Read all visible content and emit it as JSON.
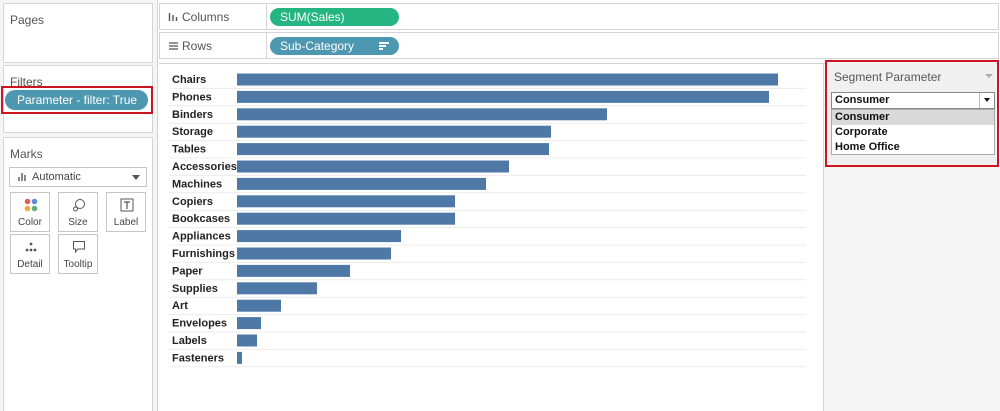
{
  "pages": {
    "title": "Pages"
  },
  "filters": {
    "title": "Filters",
    "pill_label": "Parameter - filter: True"
  },
  "marks": {
    "title": "Marks",
    "mark_type": "Automatic",
    "buttons": [
      {
        "label": "Color",
        "icon": "color-dots-icon"
      },
      {
        "label": "Size",
        "icon": "size-icon"
      },
      {
        "label": "Label",
        "icon": "label-T-icon"
      },
      {
        "label": "Detail",
        "icon": "detail-dots-icon"
      },
      {
        "label": "Tooltip",
        "icon": "tooltip-bubble-icon"
      }
    ]
  },
  "shelves": {
    "columns": {
      "label": "Columns",
      "pill": "SUM(Sales)",
      "icon": "columns-icon"
    },
    "rows": {
      "label": "Rows",
      "pill": "Sub-Category",
      "icon": "rows-icon"
    }
  },
  "colors": {
    "bar": "#4e79a7",
    "measure_pill": "#25b582",
    "dimension_pill": "#4e97b0",
    "highlight_border": "#c8171e"
  },
  "chart_data": {
    "type": "bar",
    "orientation": "horizontal",
    "categories": [
      "Chairs",
      "Phones",
      "Binders",
      "Storage",
      "Tables",
      "Accessories",
      "Machines",
      "Copiers",
      "Bookcases",
      "Appliances",
      "Furnishings",
      "Paper",
      "Supplies",
      "Art",
      "Envelopes",
      "Labels",
      "Fasteners"
    ],
    "values": [
      541,
      532,
      370,
      314,
      312,
      272,
      249,
      218,
      218,
      164,
      154,
      113,
      80,
      44,
      24,
      20,
      5
    ],
    "xlim": [
      0,
      570
    ],
    "grid": false,
    "legend": "none"
  },
  "parameter": {
    "title": "Segment Parameter",
    "selected": "Consumer",
    "options": [
      "Consumer",
      "Corporate",
      "Home Office"
    ]
  }
}
